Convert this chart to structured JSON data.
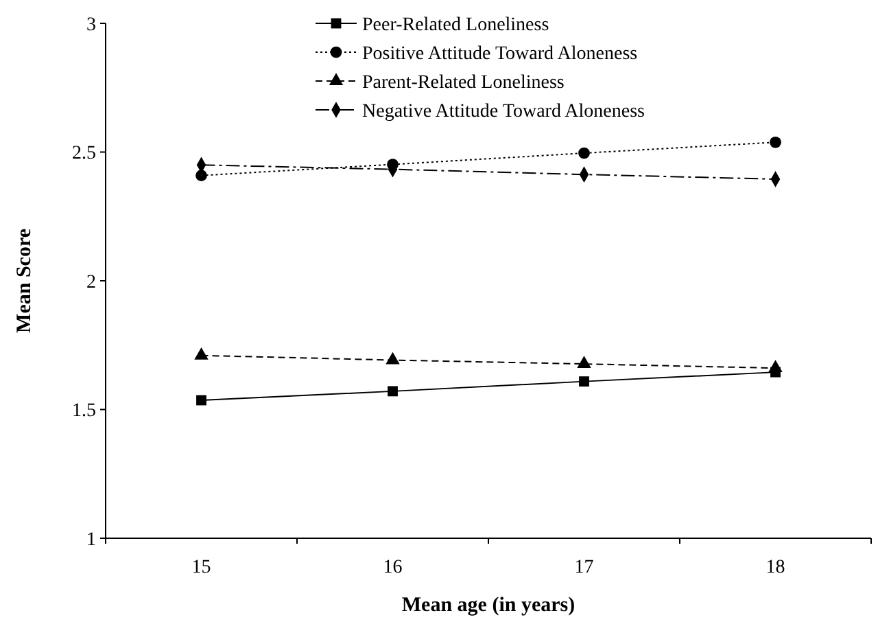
{
  "chart_data": {
    "type": "line",
    "xlabel": "Mean age (in years)",
    "ylabel": "Mean Score",
    "categories": [
      "15",
      "16",
      "17",
      "18"
    ],
    "ylim": [
      1,
      3
    ],
    "yticks": [
      1,
      1.5,
      2,
      2.5,
      3
    ],
    "grid": false,
    "legend": "top",
    "series": [
      {
        "name": "Peer-Related Loneliness",
        "color": "#000000",
        "marker": "square",
        "line_style": "solid",
        "values": [
          1.536,
          1.571,
          1.609,
          1.645
        ]
      },
      {
        "name": "Positive Attitude Toward Aloneness",
        "color": "#000000",
        "marker": "circle",
        "line_style": "dotted",
        "values": [
          2.409,
          2.452,
          2.496,
          2.538
        ]
      },
      {
        "name": "Parent-Related Loneliness",
        "color": "#000000",
        "marker": "triangle",
        "line_style": "dashed",
        "values": [
          1.71,
          1.692,
          1.677,
          1.661
        ]
      },
      {
        "name": "Negative Attitude Toward Aloneness",
        "color": "#000000",
        "marker": "diamond",
        "line_style": "dashdot",
        "values": [
          2.45,
          2.433,
          2.413,
          2.395
        ]
      }
    ]
  }
}
